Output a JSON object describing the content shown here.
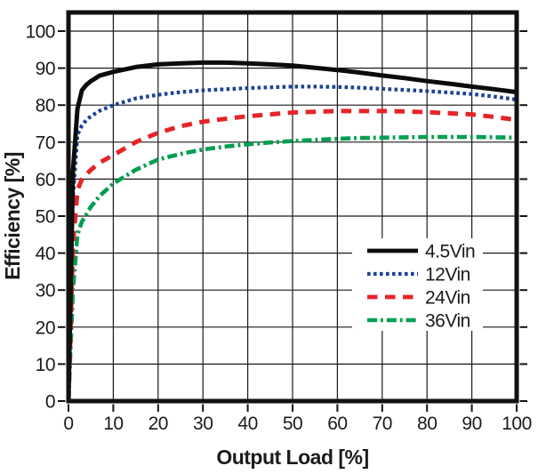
{
  "figure": {
    "background": "#ffffff",
    "kind": "efficiency-vs-output-load-line-chart"
  },
  "chart_data": {
    "type": "line",
    "title": "",
    "xlabel": "Output Load [%]",
    "ylabel": "Efficiency [%]",
    "xlim": [
      0,
      100
    ],
    "ylim": [
      0,
      105
    ],
    "xticks": [
      0,
      10,
      20,
      30,
      40,
      50,
      60,
      70,
      80,
      90,
      100
    ],
    "yticks": [
      0,
      10,
      20,
      30,
      40,
      50,
      60,
      70,
      80,
      90,
      100
    ],
    "grid": true,
    "legend_position": "inside-lower-right",
    "grid_color": "#1a1a1a",
    "border_color": "#121212",
    "text_color": "#1b1b1b",
    "legend_bg": "#ffffff",
    "x": [
      0,
      1,
      2,
      3,
      4,
      5,
      7,
      10,
      15,
      20,
      25,
      30,
      35,
      40,
      45,
      50,
      55,
      60,
      65,
      70,
      75,
      80,
      85,
      90,
      95,
      100
    ],
    "series": [
      {
        "name": "4.5Vin",
        "color": "#0c0c0c",
        "dash": "solid",
        "width": 5,
        "values": [
          0,
          62,
          79,
          84,
          85.5,
          86.5,
          88,
          89,
          90.3,
          91,
          91.3,
          91.5,
          91.5,
          91.3,
          91,
          90.7,
          90.1,
          89.5,
          88.8,
          88,
          87.3,
          86.5,
          85.8,
          85,
          84.3,
          83.5
        ]
      },
      {
        "name": "12Vin",
        "color": "#1e4296",
        "dash": "dotted",
        "width": 4.2,
        "values": [
          0,
          55,
          72,
          74.5,
          76,
          77,
          78.5,
          80,
          81.8,
          82.8,
          83.5,
          84,
          84.3,
          84.6,
          84.8,
          85,
          85,
          84.9,
          84.7,
          84.4,
          84.1,
          83.8,
          83.4,
          83,
          82.3,
          81.5
        ]
      },
      {
        "name": "24Vin",
        "color": "#e52528",
        "dash": "dashed",
        "width": 5,
        "values": [
          0,
          42,
          57,
          60,
          61.3,
          62.5,
          64.5,
          66.5,
          70,
          72.5,
          74.3,
          75.5,
          76.3,
          77,
          77.5,
          78,
          78.2,
          78.4,
          78.4,
          78.4,
          78.3,
          78.1,
          77.8,
          77.5,
          76.8,
          76
        ]
      },
      {
        "name": "36Vin",
        "color": "#009e51",
        "dash": "dash-dot",
        "width": 4.6,
        "values": [
          0,
          30,
          45,
          48.5,
          50.5,
          52.5,
          55.5,
          58.8,
          62.5,
          65.3,
          66.8,
          68,
          68.8,
          69.4,
          69.9,
          70.3,
          70.6,
          70.9,
          71.1,
          71.2,
          71.3,
          71.4,
          71.4,
          71.4,
          71.3,
          71.2
        ]
      }
    ]
  }
}
